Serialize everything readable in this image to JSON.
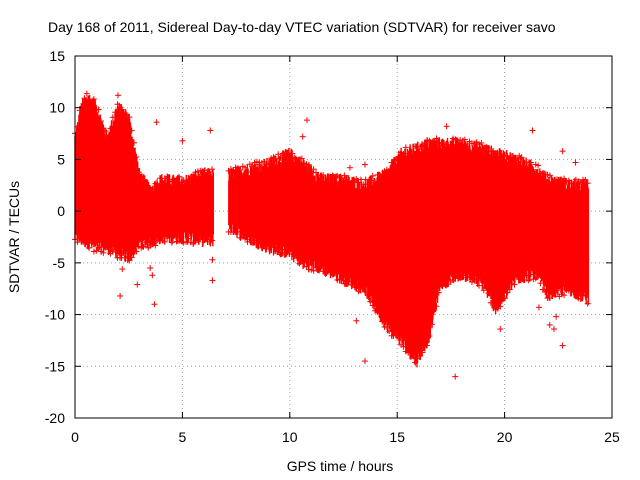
{
  "chart_data": {
    "type": "scatter",
    "title": "Day 168 of 2011, Sidereal Day-to-day VTEC variation (SDTVAR) for receiver savo",
    "xlabel": "GPS time / hours",
    "ylabel": "SDTVAR / TECUs",
    "xlim": [
      0,
      25
    ],
    "ylim": [
      -20,
      15
    ],
    "x_ticks": [
      0,
      5,
      10,
      15,
      20,
      25
    ],
    "y_ticks": [
      -20,
      -15,
      -10,
      -5,
      0,
      5,
      10,
      15
    ],
    "x_tick_labels": [
      "0",
      "5",
      "10",
      "15",
      "20",
      "25"
    ],
    "y_tick_labels": [
      "-20",
      "-15",
      "-10",
      "-5",
      "0",
      "5",
      "10",
      "15"
    ],
    "grid": true,
    "marker": "+",
    "color": "#ff0000",
    "series": [
      {
        "name": "savo",
        "envelope": [
          {
            "x": 0.0,
            "upper": 7.0,
            "lower": -2.5
          },
          {
            "x": 0.3,
            "upper": 10.0,
            "lower": -2.8
          },
          {
            "x": 0.6,
            "upper": 11.0,
            "lower": -3.0
          },
          {
            "x": 1.0,
            "upper": 10.0,
            "lower": -3.5
          },
          {
            "x": 1.5,
            "upper": 7.0,
            "lower": -3.5
          },
          {
            "x": 2.0,
            "upper": 10.0,
            "lower": -4.0
          },
          {
            "x": 2.5,
            "upper": 9.0,
            "lower": -4.5
          },
          {
            "x": 3.0,
            "upper": 3.5,
            "lower": -3.0
          },
          {
            "x": 3.5,
            "upper": 2.0,
            "lower": -3.0
          },
          {
            "x": 4.0,
            "upper": 3.0,
            "lower": -2.5
          },
          {
            "x": 5.0,
            "upper": 2.8,
            "lower": -2.5
          },
          {
            "x": 6.0,
            "upper": 3.5,
            "lower": -2.8
          },
          {
            "x": 6.4,
            "upper": 3.5,
            "lower": -2.8
          },
          {
            "x": 7.2,
            "upper": 3.5,
            "lower": -1.5
          },
          {
            "x": 8.0,
            "upper": 4.0,
            "lower": -2.5
          },
          {
            "x": 9.0,
            "upper": 4.5,
            "lower": -3.5
          },
          {
            "x": 10.0,
            "upper": 5.5,
            "lower": -4.0
          },
          {
            "x": 10.6,
            "upper": 4.5,
            "lower": -5.0
          },
          {
            "x": 11.5,
            "upper": 3.0,
            "lower": -5.5
          },
          {
            "x": 12.5,
            "upper": 3.0,
            "lower": -6.5
          },
          {
            "x": 13.5,
            "upper": 2.5,
            "lower": -7.5
          },
          {
            "x": 14.5,
            "upper": 3.5,
            "lower": -11.0
          },
          {
            "x": 15.2,
            "upper": 5.5,
            "lower": -12.5
          },
          {
            "x": 15.9,
            "upper": 6.0,
            "lower": -14.5
          },
          {
            "x": 16.5,
            "upper": 6.5,
            "lower": -12.0
          },
          {
            "x": 17.0,
            "upper": 6.5,
            "lower": -7.0
          },
          {
            "x": 18.0,
            "upper": 6.5,
            "lower": -6.0
          },
          {
            "x": 19.0,
            "upper": 6.0,
            "lower": -7.0
          },
          {
            "x": 19.6,
            "upper": 5.5,
            "lower": -9.5
          },
          {
            "x": 20.5,
            "upper": 5.0,
            "lower": -6.5
          },
          {
            "x": 21.5,
            "upper": 4.0,
            "lower": -6.0
          },
          {
            "x": 22.0,
            "upper": 3.0,
            "lower": -8.0
          },
          {
            "x": 23.0,
            "upper": 2.5,
            "lower": -7.5
          },
          {
            "x": 23.9,
            "upper": 2.5,
            "lower": -8.5
          }
        ],
        "outliers": [
          [
            2.0,
            11.2
          ],
          [
            2.2,
            9.5
          ],
          [
            3.8,
            8.6
          ],
          [
            5.0,
            6.8
          ],
          [
            6.3,
            7.8
          ],
          [
            10.8,
            8.8
          ],
          [
            10.6,
            7.2
          ],
          [
            12.8,
            4.2
          ],
          [
            13.5,
            4.5
          ],
          [
            14.8,
            3.0
          ],
          [
            16.4,
            6.8
          ],
          [
            17.3,
            8.2
          ],
          [
            18.8,
            5.5
          ],
          [
            19.8,
            5.2
          ],
          [
            21.3,
            7.8
          ],
          [
            22.7,
            5.8
          ],
          [
            23.3,
            4.7
          ],
          [
            2.1,
            -8.2
          ],
          [
            2.2,
            -5.6
          ],
          [
            2.9,
            -7.1
          ],
          [
            3.5,
            -5.5
          ],
          [
            3.6,
            -6.2
          ],
          [
            3.7,
            -9.0
          ],
          [
            6.4,
            -6.7
          ],
          [
            6.4,
            -4.7
          ],
          [
            13.1,
            -10.6
          ],
          [
            13.3,
            -7.5
          ],
          [
            13.5,
            -14.5
          ],
          [
            17.7,
            -16.0
          ],
          [
            19.8,
            -11.4
          ],
          [
            21.6,
            -9.3
          ],
          [
            22.1,
            -11.0
          ],
          [
            22.3,
            -11.4
          ],
          [
            22.4,
            -10.2
          ],
          [
            22.7,
            -13.0
          ]
        ]
      }
    ]
  }
}
